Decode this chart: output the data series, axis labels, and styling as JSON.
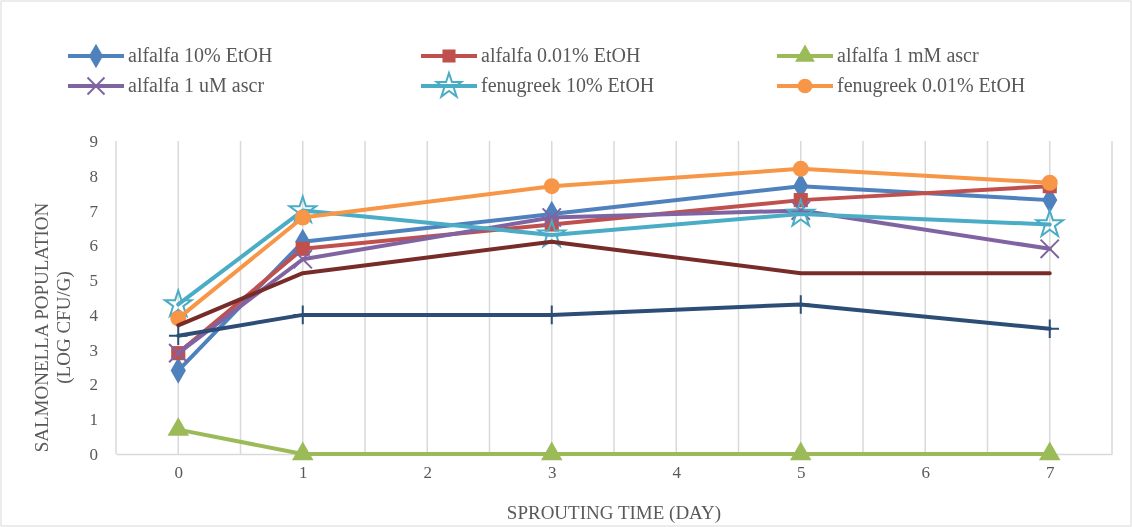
{
  "chart_data": {
    "type": "line",
    "xlabel": "SPROUTING TIME (DAY)",
    "ylabel": "SALMONELLA POPULATION\n(LOG CFU/G)",
    "xlim": [
      -0.5,
      7.5
    ],
    "xticks": [
      {
        "value": -0.5,
        "label": null
      },
      0,
      {
        "value": 0.5,
        "label": null
      },
      1,
      {
        "value": 1.5,
        "label": null
      },
      2,
      {
        "value": 2.5,
        "label": null
      },
      3,
      {
        "value": 3.5,
        "label": null
      },
      4,
      {
        "value": 4.5,
        "label": null
      },
      5,
      {
        "value": 5.5,
        "label": null
      },
      6,
      {
        "value": 6.5,
        "label": null
      },
      7,
      {
        "value": 7.5,
        "label": null
      }
    ],
    "ylim": [
      0,
      9
    ],
    "yticks": [
      0,
      1,
      2,
      3,
      4,
      5,
      6,
      7,
      8,
      9
    ],
    "grid": "x",
    "legend": "top",
    "series": [
      {
        "name": "alfalfa 10% EtOH",
        "color": "#4f81bd",
        "marker": "diamond",
        "x": [
          0,
          1,
          3,
          5,
          7
        ],
        "values": [
          2.4,
          6.1,
          6.9,
          7.7,
          7.3
        ]
      },
      {
        "name": "alfalfa 0.01% EtOH",
        "color": "#c0504d",
        "marker": "square",
        "x": [
          0,
          1,
          3,
          5,
          7
        ],
        "values": [
          2.9,
          5.9,
          6.6,
          7.3,
          7.7
        ]
      },
      {
        "name": "alfalfa 1 mM ascr",
        "color": "#9bbb59",
        "marker": "triangle",
        "x": [
          0,
          1,
          3,
          5,
          7
        ],
        "values": [
          0.7,
          0,
          0,
          0,
          0
        ]
      },
      {
        "name": "alfalfa 1 uM ascr",
        "color": "#8064a2",
        "marker": "cross",
        "x": [
          0,
          1,
          3,
          5,
          7
        ],
        "values": [
          2.9,
          5.6,
          6.8,
          7.0,
          5.9
        ]
      },
      {
        "name": "fenugreek 10% EtOH",
        "color": "#4bacc6",
        "marker": "star",
        "x": [
          0,
          1,
          3,
          5,
          7
        ],
        "values": [
          4.3,
          7.0,
          6.3,
          6.9,
          6.6
        ]
      },
      {
        "name": "fenugreek 0.01% EtOH",
        "color": "#f79646",
        "marker": "circle",
        "x": [
          0,
          1,
          3,
          5,
          7
        ],
        "values": [
          3.9,
          6.8,
          7.7,
          8.2,
          7.8
        ]
      },
      {
        "color": "#772c2a",
        "marker": "none",
        "x": [
          0,
          1,
          3,
          5,
          7
        ],
        "values": [
          3.7,
          5.2,
          6.1,
          5.2,
          5.2
        ]
      },
      {
        "color": "#2c4d75",
        "marker": "plus",
        "x": [
          0,
          1,
          3,
          5,
          7
        ],
        "values": [
          3.4,
          4.0,
          4.0,
          4.3,
          3.6
        ]
      }
    ]
  }
}
